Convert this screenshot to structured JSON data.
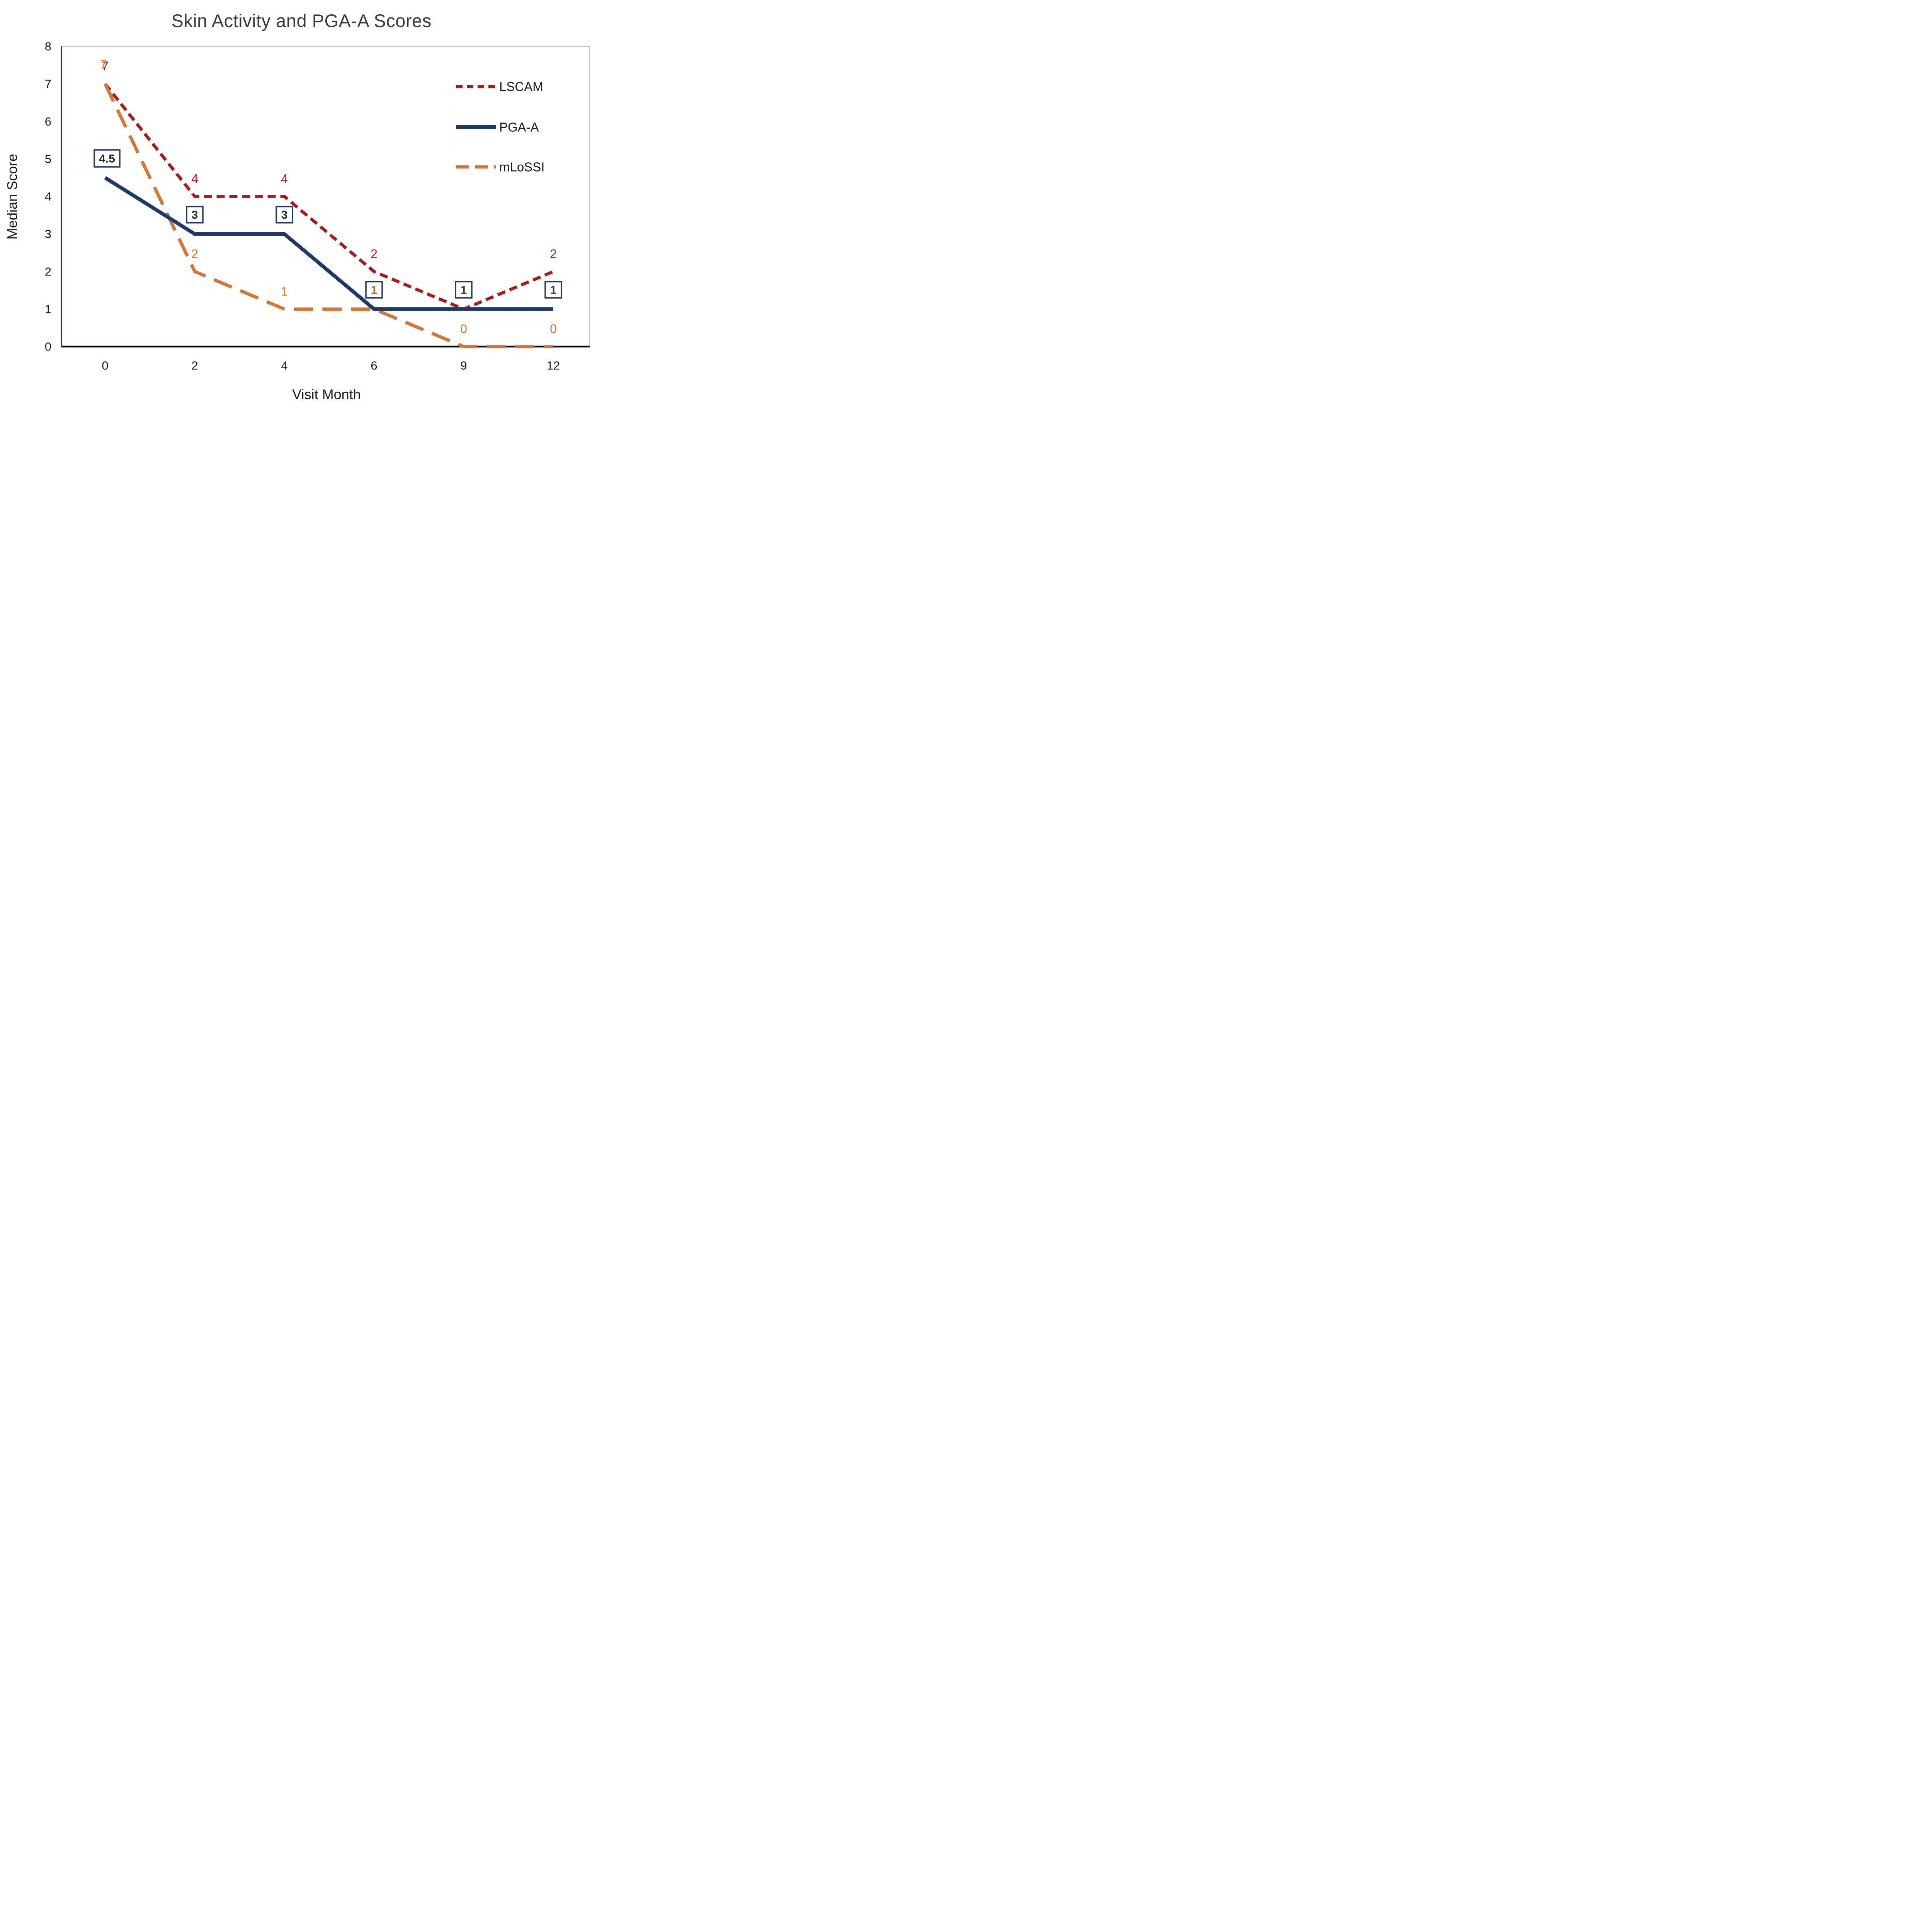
{
  "chart_data": {
    "type": "line",
    "title": "Skin Activity and PGA-A Scores",
    "xlabel": "Visit Month",
    "ylabel": "Median Score",
    "categories": [
      "0",
      "2",
      "4",
      "6",
      "9",
      "12"
    ],
    "ylim": [
      0,
      8
    ],
    "yticks": [
      "0",
      "1",
      "2",
      "3",
      "4",
      "5",
      "6",
      "7",
      "8"
    ],
    "grid": false,
    "legend_position": "upper-right",
    "series": [
      {
        "name": "LSCAM",
        "color": "#A51E1E",
        "line_style": "dashed",
        "values": [
          7,
          4,
          4,
          2,
          1,
          2
        ]
      },
      {
        "name": "PGA-A",
        "color": "#1F3864",
        "line_style": "solid",
        "values": [
          4.5,
          3,
          3,
          1,
          1,
          1
        ]
      },
      {
        "name": "mLoSSI",
        "color": "#D0793A",
        "line_style": "long-dash",
        "values": [
          7,
          2,
          1,
          1,
          0,
          0
        ]
      }
    ],
    "data_labels": {
      "lscam": [
        "7",
        "4",
        "4",
        "2",
        null,
        "2"
      ],
      "pga_boxed": [
        "4.5",
        "3",
        "3",
        "1",
        "1",
        "1"
      ],
      "mlossi": [
        "7",
        "2",
        "1",
        null,
        "0",
        "0"
      ]
    }
  },
  "colors": {
    "lscam_label": "#A51E1E",
    "mlossi_label": "#CE7A33",
    "box_border": "#1F3864",
    "box_fill": "#FFFFFF",
    "box_digit_colors": [
      "#262626",
      "#262626",
      "#262626",
      "#A9692F",
      "#553129",
      "#404040"
    ],
    "axis_left": "#1F3864",
    "axis_bottom": "#000000",
    "border_gray": "#C9C9C9",
    "tick_text": "#1a1a1a",
    "legend_text": "#1a1a1a"
  }
}
